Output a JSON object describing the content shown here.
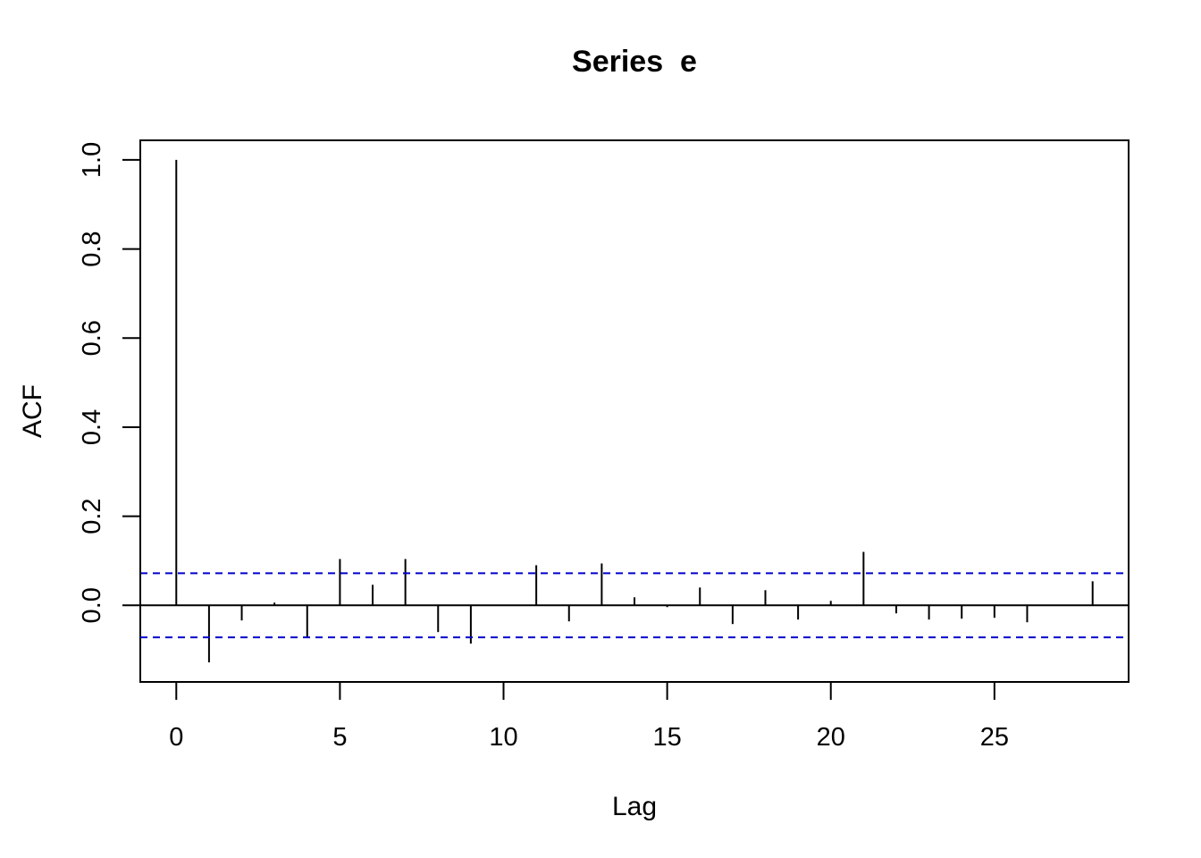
{
  "chart_data": {
    "type": "bar",
    "title": "Series  e",
    "xlabel": "Lag",
    "ylabel": "ACF",
    "xlim": [
      -1.1,
      29.1
    ],
    "ylim": [
      -0.172,
      1.044
    ],
    "x_ticks": [
      "0",
      "5",
      "10",
      "15",
      "20",
      "25"
    ],
    "y_ticks": [
      "0.0",
      "0.2",
      "0.4",
      "0.6",
      "0.8",
      "1.0"
    ],
    "grid": false,
    "legend": "none",
    "confidence_band": 0.072,
    "series": [
      {
        "x": [
          0,
          1,
          2,
          3,
          4,
          5,
          6,
          7,
          8,
          9,
          10,
          11,
          12,
          13,
          14,
          15,
          16,
          17,
          18,
          19,
          20,
          21,
          22,
          23,
          24,
          25,
          26,
          27,
          28
        ],
        "values": [
          1.0,
          -0.128,
          -0.034,
          0.006,
          -0.072,
          0.104,
          0.046,
          0.104,
          -0.06,
          -0.086,
          0.001,
          0.09,
          -0.036,
          0.094,
          0.018,
          -0.004,
          0.04,
          -0.042,
          0.034,
          -0.032,
          0.01,
          0.12,
          -0.018,
          -0.032,
          -0.03,
          -0.028,
          -0.038,
          0.001,
          0.054
        ]
      }
    ],
    "colors": {
      "bars": "#000000",
      "confidence_lines": "#0000cc",
      "zero_line": "#000000",
      "axes": "#000000"
    }
  }
}
